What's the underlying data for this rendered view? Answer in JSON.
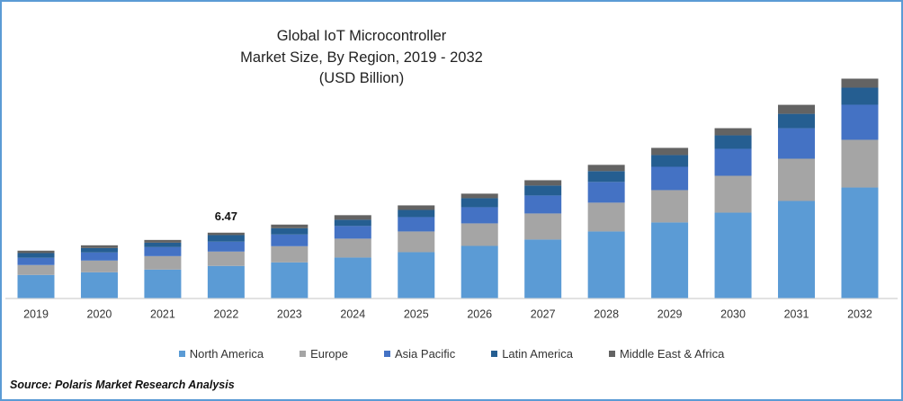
{
  "chart_data": {
    "type": "bar",
    "stacked": true,
    "title": [
      "Global IoT Microcontroller",
      "Market Size, By Region, 2019 - 2032",
      "(USD Billion)"
    ],
    "xlabel": "",
    "ylabel": "",
    "ylim": [
      0,
      25
    ],
    "grid": false,
    "legend_position": "bottom",
    "categories": [
      "2019",
      "2020",
      "2021",
      "2022",
      "2023",
      "2024",
      "2025",
      "2026",
      "2027",
      "2028",
      "2029",
      "2030",
      "2031",
      "2032"
    ],
    "series": [
      {
        "name": "North America",
        "color": "#5b9bd5",
        "values": [
          2.29,
          2.55,
          2.82,
          3.18,
          3.53,
          4.01,
          4.54,
          5.16,
          5.79,
          6.59,
          7.48,
          8.45,
          9.61,
          10.94
        ]
      },
      {
        "name": "Europe",
        "color": "#a5a5a5",
        "values": [
          0.98,
          1.16,
          1.33,
          1.42,
          1.6,
          1.87,
          2.05,
          2.23,
          2.58,
          2.85,
          3.2,
          3.65,
          4.18,
          4.72
        ]
      },
      {
        "name": "Asia Pacific",
        "color": "#4472c4",
        "values": [
          0.71,
          0.8,
          0.89,
          0.98,
          1.16,
          1.25,
          1.42,
          1.6,
          1.78,
          2.05,
          2.31,
          2.67,
          3.02,
          3.47
        ]
      },
      {
        "name": "Latin America",
        "color": "#255e91",
        "values": [
          0.47,
          0.44,
          0.44,
          0.65,
          0.62,
          0.62,
          0.71,
          0.89,
          0.98,
          1.07,
          1.16,
          1.33,
          1.42,
          1.69
        ]
      },
      {
        "name": "Middle East & Africa",
        "color": "#636363",
        "values": [
          0.24,
          0.27,
          0.27,
          0.24,
          0.36,
          0.45,
          0.45,
          0.45,
          0.53,
          0.62,
          0.71,
          0.71,
          0.89,
          0.89
        ]
      }
    ],
    "annotations": [
      {
        "category": "2022",
        "text": "6.47"
      }
    ]
  },
  "source": "Source: Polaris  Market Research Analysis",
  "colors": {
    "border": "#5b9bd5",
    "axis": "#d9d9d9"
  }
}
